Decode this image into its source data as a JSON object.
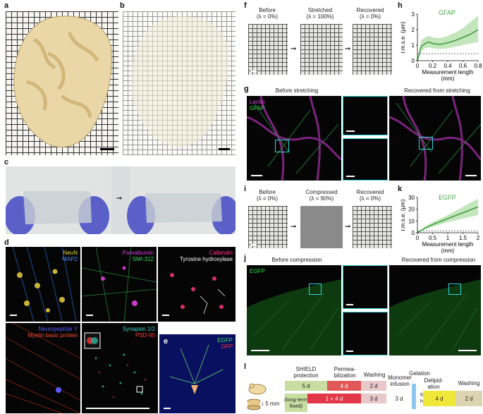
{
  "panels": {
    "a": {
      "label": "a"
    },
    "b": {
      "label": "b"
    },
    "c": {
      "label": "c"
    },
    "d": {
      "label": "d",
      "tiles": [
        {
          "lines": [
            {
              "text": "NeuN",
              "color": "#e8d84a"
            },
            {
              "text": "MAP2",
              "color": "#4a8cff"
            }
          ]
        },
        {
          "lines": [
            {
              "text": "Parvalbumin",
              "color": "#d63ad6"
            },
            {
              "text": "SMI-312",
              "color": "#3ad65a"
            }
          ]
        },
        {
          "lines": [
            {
              "text": "Calbindin",
              "color": "#ff3a8c"
            },
            {
              "text": "Tyrosine hydroxylase",
              "color": "#ffffff"
            }
          ]
        },
        {
          "lines": [
            {
              "text": "Neuropeptide Y",
              "color": "#5a5aff"
            },
            {
              "text": "Myelin basic protein",
              "color": "#ff4a2a"
            }
          ]
        },
        {
          "lines": [
            {
              "text": "Synapsin 1/2",
              "color": "#3ad6c8"
            },
            {
              "text": "PSD-95",
              "color": "#ff3a3a"
            }
          ]
        }
      ]
    },
    "e": {
      "label": "e",
      "lines": [
        {
          "text": "EGFP",
          "color": "#3ad65a"
        },
        {
          "text": "GFP",
          "color": "#ff3a3a"
        }
      ]
    },
    "f": {
      "label": "f",
      "states": [
        {
          "title": "Before",
          "lambda": "(λ = 0%)"
        },
        {
          "title": "Stretched",
          "lambda": "(λ = 100%)"
        },
        {
          "title": "Recovered",
          "lambda": "(λ = 0%)"
        }
      ]
    },
    "g": {
      "label": "g",
      "left_title": "Before stretching",
      "right_title": "Recovered from stretching",
      "legend": [
        {
          "text": "Lectin",
          "color": "#e040e0"
        },
        {
          "text": "GFAP",
          "color": "#3ad65a"
        }
      ]
    },
    "h": {
      "label": "h",
      "series": "GFAP",
      "ylabel": "r.m.s.e. (μm)",
      "xlabel1": "Measurement length",
      "xlabel2": "(mm)"
    },
    "i": {
      "label": "i",
      "states": [
        {
          "title": "Before",
          "lambda": "(λ = 0%)"
        },
        {
          "title": "Compressed",
          "lambda": "(λ = 90%)"
        },
        {
          "title": "Recovered",
          "lambda": "(λ = 0%)"
        }
      ]
    },
    "j": {
      "label": "j",
      "left_title": "Before compression",
      "right_title": "Recovered from compression",
      "legend": [
        {
          "text": "EGFP",
          "color": "#3ad65a"
        }
      ]
    },
    "k": {
      "label": "k",
      "series": "EGFP",
      "ylabel": "r.m.s.e. (μm)",
      "xlabel1": "Measurement length",
      "xlabel2": "(mm)"
    },
    "l": {
      "label": "l",
      "headers": [
        "SHIELD\nprotection",
        "Permea-\nbilization",
        "Washing",
        "Monomer\ninfusion",
        "Gelation",
        "Delipid-\nation",
        "Washing"
      ],
      "row1": [
        "5 d",
        "4 d",
        "2 d"
      ],
      "row2_note": "(long-term\nfixed)",
      "row2": [
        "1 + 4 d",
        "3 d"
      ],
      "shared": [
        "3 d",
        "6 h",
        "4 d",
        "2 d"
      ],
      "scale_text": "5 mm"
    }
  },
  "chart_data": [
    {
      "type": "line",
      "title": "",
      "series": [
        {
          "name": "GFAP",
          "x": [
            0,
            0.05,
            0.1,
            0.15,
            0.2,
            0.3,
            0.4,
            0.5,
            0.6,
            0.7,
            0.8
          ],
          "values": [
            0,
            0.9,
            1.1,
            1.2,
            1.1,
            1.05,
            1.15,
            1.3,
            1.5,
            1.7,
            2.0
          ]
        }
      ],
      "band_low": [
        0,
        0.6,
        0.8,
        0.85,
        0.8,
        0.75,
        0.8,
        0.9,
        1.0,
        1.1,
        1.2
      ],
      "band_high": [
        0,
        1.3,
        1.5,
        1.6,
        1.5,
        1.45,
        1.6,
        1.8,
        2.1,
        2.5,
        2.9
      ],
      "reference": 0.45,
      "xlabel": "Measurement length (mm)",
      "ylabel": "r.m.s.e. (μm)",
      "xlim": [
        0,
        0.8
      ],
      "ylim": [
        0,
        3
      ],
      "xticks": [
        0,
        0.2,
        0.4,
        0.6,
        0.8
      ],
      "yticks": [
        0,
        1,
        2,
        3
      ]
    },
    {
      "type": "line",
      "title": "",
      "series": [
        {
          "name": "EGFP",
          "x": [
            0,
            0.25,
            0.5,
            0.75,
            1.0,
            1.25,
            1.5,
            1.75,
            2.0
          ],
          "values": [
            0,
            4,
            7,
            9.5,
            12,
            14.5,
            17,
            19.5,
            22
          ]
        }
      ],
      "band_low": [
        0,
        3,
        5,
        7,
        9,
        10.5,
        12,
        13.5,
        15
      ],
      "band_high": [
        0,
        5,
        9,
        12,
        15,
        18.5,
        22,
        25.5,
        29
      ],
      "reference": 1.5,
      "xlabel": "Measurement length (mm)",
      "ylabel": "r.m.s.e. (μm)",
      "xlim": [
        0,
        2.0
      ],
      "ylim": [
        0,
        30
      ],
      "xticks": [
        0,
        0.5,
        1.0,
        1.5,
        2.0
      ],
      "yticks": [
        0,
        10,
        20,
        30
      ]
    }
  ]
}
